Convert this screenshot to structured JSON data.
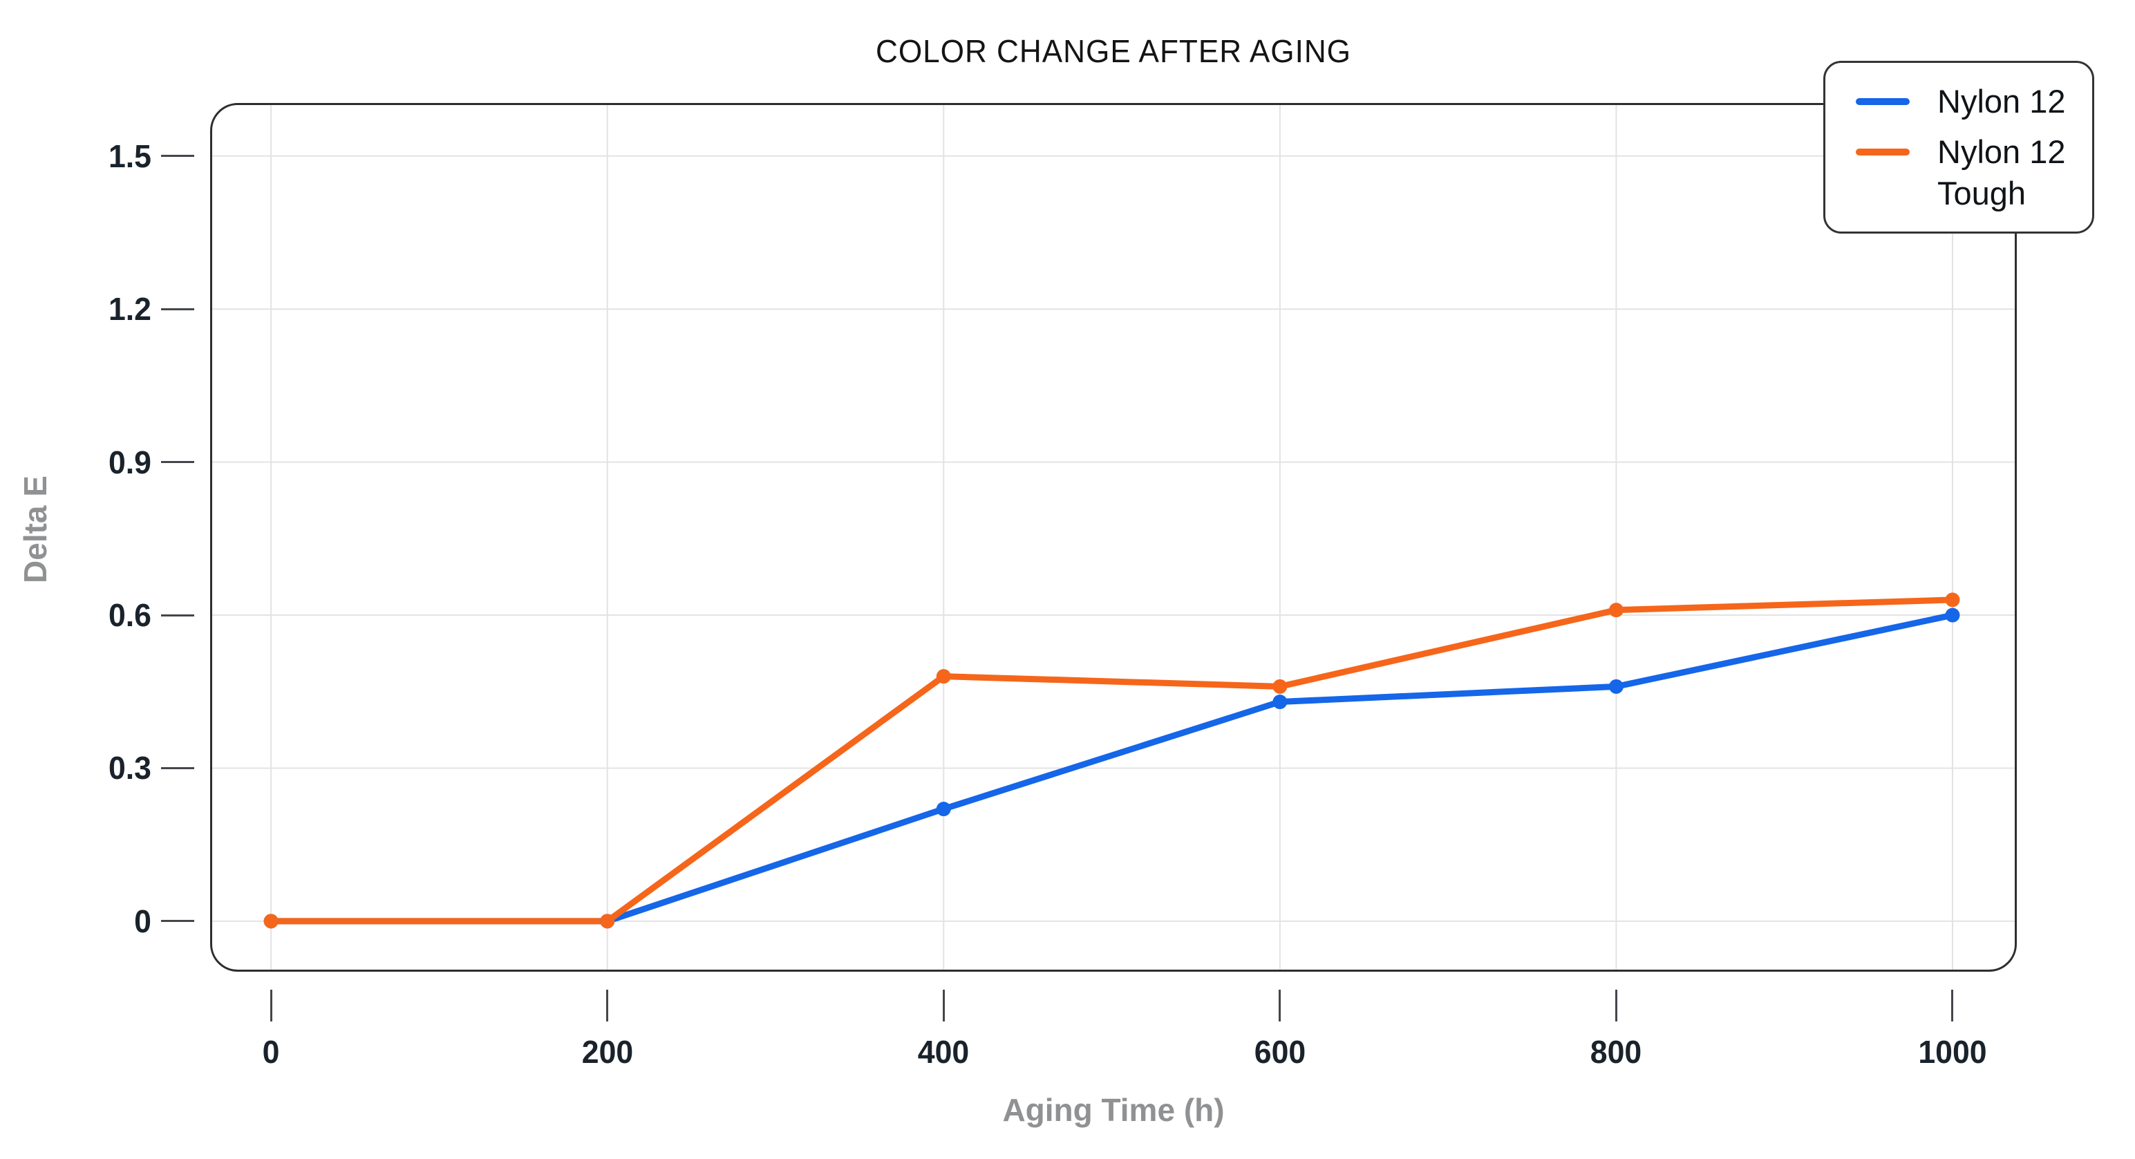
{
  "title": "COLOR CHANGE AFTER AGING",
  "colors": {
    "series_blue": "#1566e8",
    "series_orange": "#f5661b",
    "grid": "#e3e3e3",
    "plot_border": "#2e2e2e",
    "tick_mark": "#43474b",
    "tick_label": "#1a222b",
    "axis_title": "#8f9193",
    "background": "#ffffff"
  },
  "legend": {
    "position": "top-right",
    "items": [
      {
        "label": "Nylon 12"
      },
      {
        "label": "Nylon 12 Tough"
      }
    ]
  },
  "chart_data": {
    "type": "line",
    "title": "COLOR CHANGE AFTER AGING",
    "xlabel": "Aging Time (h)",
    "ylabel": "Delta E",
    "x": [
      0,
      200,
      400,
      600,
      800,
      1000
    ],
    "series": [
      {
        "name": "Nylon 12",
        "color": "#1566e8",
        "values": [
          0,
          0,
          0.22,
          0.43,
          0.46,
          0.6
        ]
      },
      {
        "name": "Nylon 12 Tough",
        "color": "#f5661b",
        "values": [
          0,
          0,
          0.48,
          0.46,
          0.61,
          0.63
        ]
      }
    ],
    "x_ticks": [
      0,
      200,
      400,
      600,
      800,
      1000
    ],
    "y_ticks": [
      0,
      0.3,
      0.6,
      0.9,
      1.2,
      1.5
    ],
    "xlim": [
      -35,
      1037
    ],
    "ylim": [
      -0.095,
      1.6
    ],
    "grid": true,
    "legend_position": "top-right",
    "markers": true
  }
}
